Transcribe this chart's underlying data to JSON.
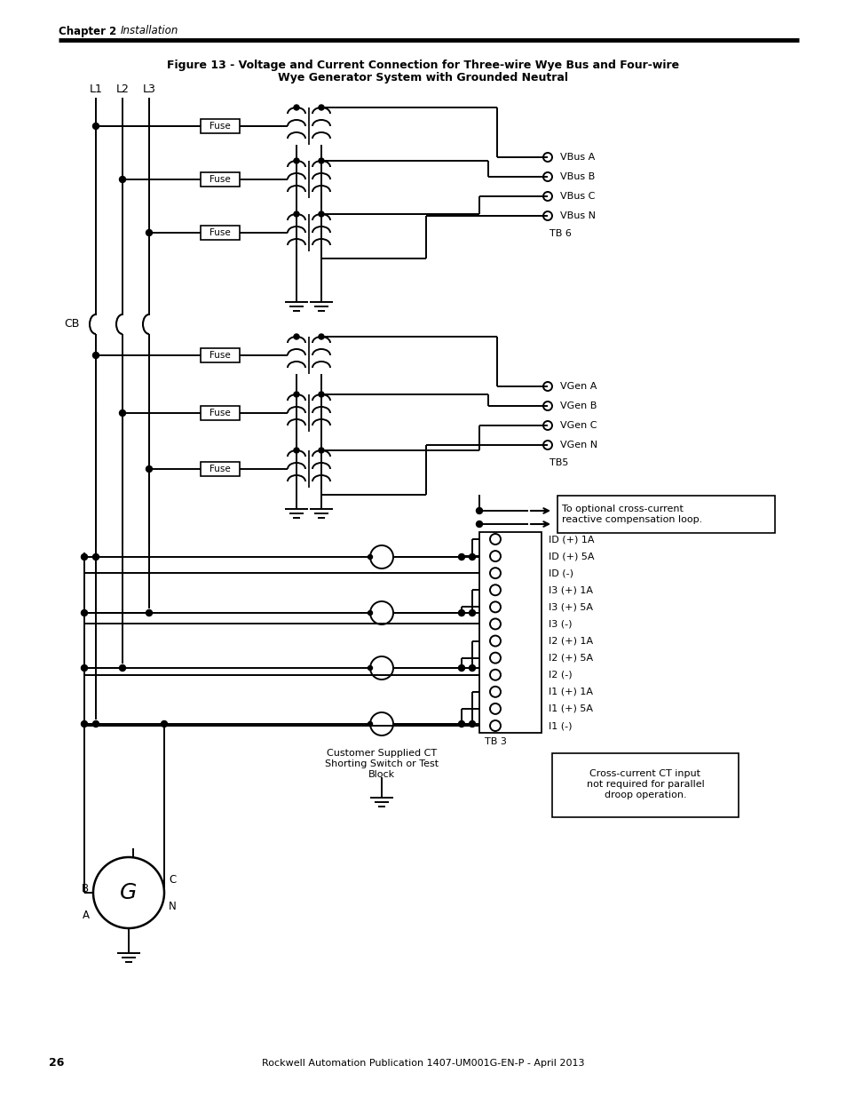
{
  "chapter": "Chapter 2",
  "chapter_section": "Installation",
  "fig_title1": "Figure 13 - Voltage and Current Connection for Three-wire Wye Bus and Four-wire",
  "fig_title2": "Wye Generator System with Grounded Neutral",
  "footer_page": "26",
  "footer_text": "Rockwell Automation Publication 1407-UM001G-EN-P - April 2013",
  "labels_vbus": [
    "VBus A",
    "VBus B",
    "VBus C",
    "VBus N"
  ],
  "labels_vgen": [
    "VGen A",
    "VGen B",
    "VGen C",
    "VGen N"
  ],
  "labels_tb3": [
    "ID (+) 1A",
    "ID (+) 5A",
    "ID (-)",
    "I3 (+) 1A",
    "I3 (+) 5A",
    "I3 (-)",
    "I2 (+) 1A",
    "I2 (+) 5A",
    "I2 (-)",
    "I1 (+) 1A",
    "I1 (+) 5A",
    "I1 (-)"
  ],
  "tb6_label": "TB 6",
  "tb5_label": "TB5",
  "tb3_label": "TB 3",
  "cb_label": "CB",
  "l_labels": [
    "L1",
    "L2",
    "L3"
  ],
  "gen_label": "G",
  "a_label": "A",
  "b_label": "B",
  "c_label": "C",
  "n_label": "N",
  "cross_current_note": "To optional cross-current\nreactive compensation loop.",
  "customer_ct_note": "Customer Supplied CT\nShorting Switch or Test\nBlock",
  "droop_note": "Cross-current CT input\nnot required for parallel\ndroop operation.",
  "line_color": "#000000",
  "bg_color": "#ffffff"
}
